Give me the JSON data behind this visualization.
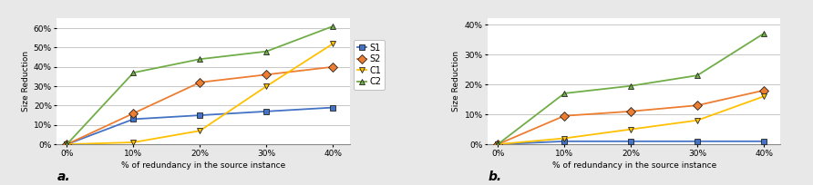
{
  "x": [
    0,
    10,
    20,
    30,
    40
  ],
  "chart_a": {
    "S1": [
      0,
      13,
      15,
      17,
      19
    ],
    "S2": [
      0,
      16,
      32,
      36,
      40
    ],
    "C1": [
      0,
      1,
      7,
      30,
      52
    ],
    "C2": [
      0,
      37,
      44,
      48,
      61
    ]
  },
  "chart_b": {
    "S1": [
      0,
      1,
      1,
      1,
      1
    ],
    "S2": [
      0,
      9.5,
      11,
      13,
      18
    ],
    "C1": [
      0,
      2,
      5,
      8,
      16
    ],
    "C2": [
      0,
      17,
      19.5,
      23,
      37
    ]
  },
  "colors": {
    "S1": "#4472C4",
    "S2": "#ED7D31",
    "C1": "#FFC000",
    "C2": "#70AD47"
  },
  "markers": {
    "S1": "s",
    "S2": "D",
    "C1": "v",
    "C2": "^"
  },
  "ylabel": "Size Reduction",
  "xlabel": "% of redundancy in the source instance",
  "ylim_a": [
    0,
    65
  ],
  "ylim_b": [
    0,
    42
  ],
  "yticks_a": [
    0,
    10,
    20,
    30,
    40,
    50,
    60
  ],
  "yticks_b": [
    0,
    10,
    20,
    30,
    40
  ],
  "legend_labels": [
    "S1",
    "S2",
    "C1",
    "C2"
  ],
  "label_a": "a.",
  "label_b": "b.",
  "bg_color": "#e8e8e8",
  "plot_bg": "#ffffff"
}
